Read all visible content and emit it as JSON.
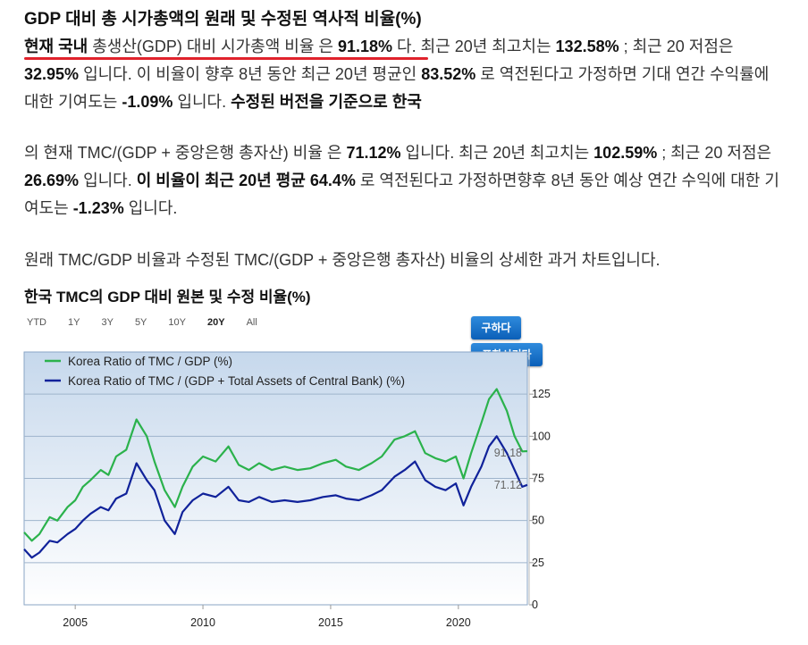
{
  "page": {
    "title": "GDP 대비 총 시가총액의 원래 및 수정된 역사적 비율(%)"
  },
  "paragraph1": {
    "intro_bold": "현재 국내",
    "intro_rest": " 총생산(GDP) 대비 시가총액 비율 은 ",
    "ratio": "91.18%",
    "t1": " 다. 최근 20년 최고치는 ",
    "high": "132.58%",
    "t2": " ; 최근 20 저점은 ",
    "low": "32.95%",
    "t3": " 입니다. 이 비율이 향후 8년 동안 최근 20년 평균인 ",
    "avg": "83.52%",
    "t4": " 로 역전된다고 가정하면 기대 연간 수익률에 대한 기여도는 ",
    "contribution": "-1.09%",
    "t5": " 입니다. ",
    "tail_bold": "수정된 버전을 기준으로 한국"
  },
  "paragraph2": {
    "t1": "의 현재 TMC/(GDP + 중앙은행 총자산) 비율 은 ",
    "ratio": "71.12%",
    "t2": " 입니다. 최근 20년 최고치는 ",
    "high": "102.59%",
    "t3": " ; 최근 20 저점은 ",
    "low": "26.69%",
    "t4": " 입니다. ",
    "bold": "이 비율이 최근 20년 평균 64.4%",
    "t5": " 로 역전된다고 가정하면향후 8년 동안 예상 연간 수익에 대한 기여도는 ",
    "contribution": "-1.23%",
    "t6": " 입니다."
  },
  "paragraph3": {
    "text": "원래 TMC/GDP 비율과 수정된 TMC/(GDP + 중앙은행 총자산) 비율의 상세한 과거 차트입니다."
  },
  "chart_header": {
    "title": "한국 TMC의 GDP 대비 원본 및 수정 비율(%)",
    "ranges": [
      "YTD",
      "1Y",
      "3Y",
      "5Y",
      "10Y",
      "20Y",
      "All"
    ],
    "active_range": "20Y",
    "buy_button": "구하다",
    "include_button": "포함시키다"
  },
  "colors": {
    "original": "#2bb24c",
    "modified": "#10229a",
    "plot_top": "#c6d8ec",
    "plot_bottom": "#ffffff"
  },
  "chart_data": {
    "type": "line",
    "title": "한국 TMC의 GDP 대비 원본 및 수정 비율(%)",
    "x_range": [
      2003.0,
      2022.7
    ],
    "y_range": [
      0,
      150
    ],
    "y_ticks": [
      0,
      25,
      50,
      75,
      100,
      125
    ],
    "x_ticks": [
      2005,
      2010,
      2015,
      2020
    ],
    "grid": true,
    "legend_position": "top-left",
    "value_labels": [
      "91.18",
      "71.12"
    ],
    "series": [
      {
        "name": "Korea Ratio of TMC / GDP (%)",
        "color": "#2bb24c",
        "x": [
          2003.0,
          2003.3,
          2003.6,
          2004.0,
          2004.3,
          2004.7,
          2005.0,
          2005.3,
          2005.6,
          2006.0,
          2006.3,
          2006.6,
          2007.0,
          2007.4,
          2007.8,
          2008.1,
          2008.5,
          2008.9,
          2009.2,
          2009.6,
          2010.0,
          2010.5,
          2011.0,
          2011.4,
          2011.8,
          2012.2,
          2012.7,
          2013.2,
          2013.7,
          2014.2,
          2014.7,
          2015.2,
          2015.6,
          2016.1,
          2016.6,
          2017.0,
          2017.5,
          2017.9,
          2018.3,
          2018.7,
          2019.1,
          2019.5,
          2019.9,
          2020.2,
          2020.5,
          2020.9,
          2021.2,
          2021.5,
          2021.9,
          2022.2,
          2022.5,
          2022.7
        ],
        "values": [
          43,
          38,
          42,
          52,
          50,
          58,
          62,
          70,
          74,
          80,
          77,
          88,
          92,
          110,
          100,
          85,
          68,
          58,
          70,
          82,
          88,
          85,
          94,
          83,
          80,
          84,
          80,
          82,
          80,
          81,
          84,
          86,
          82,
          80,
          84,
          88,
          98,
          100,
          103,
          90,
          87,
          85,
          88,
          75,
          90,
          108,
          122,
          128,
          115,
          100,
          91,
          91.18
        ]
      },
      {
        "name": "Korea Ratio of TMC / (GDP + Total Assets of Central Bank) (%)",
        "color": "#10229a",
        "x": [
          2003.0,
          2003.3,
          2003.6,
          2004.0,
          2004.3,
          2004.7,
          2005.0,
          2005.3,
          2005.6,
          2006.0,
          2006.3,
          2006.6,
          2007.0,
          2007.4,
          2007.8,
          2008.1,
          2008.5,
          2008.9,
          2009.2,
          2009.6,
          2010.0,
          2010.5,
          2011.0,
          2011.4,
          2011.8,
          2012.2,
          2012.7,
          2013.2,
          2013.7,
          2014.2,
          2014.7,
          2015.2,
          2015.6,
          2016.1,
          2016.6,
          2017.0,
          2017.5,
          2017.9,
          2018.3,
          2018.7,
          2019.1,
          2019.5,
          2019.9,
          2020.2,
          2020.5,
          2020.9,
          2021.2,
          2021.5,
          2021.9,
          2022.2,
          2022.5,
          2022.7
        ],
        "values": [
          33,
          28,
          31,
          38,
          37,
          42,
          45,
          50,
          54,
          58,
          56,
          63,
          66,
          84,
          74,
          68,
          50,
          42,
          55,
          62,
          66,
          64,
          70,
          62,
          61,
          64,
          61,
          62,
          61,
          62,
          64,
          65,
          63,
          62,
          65,
          68,
          76,
          80,
          85,
          74,
          70,
          68,
          72,
          59,
          70,
          82,
          94,
          100,
          90,
          80,
          70,
          71.12
        ]
      }
    ]
  }
}
